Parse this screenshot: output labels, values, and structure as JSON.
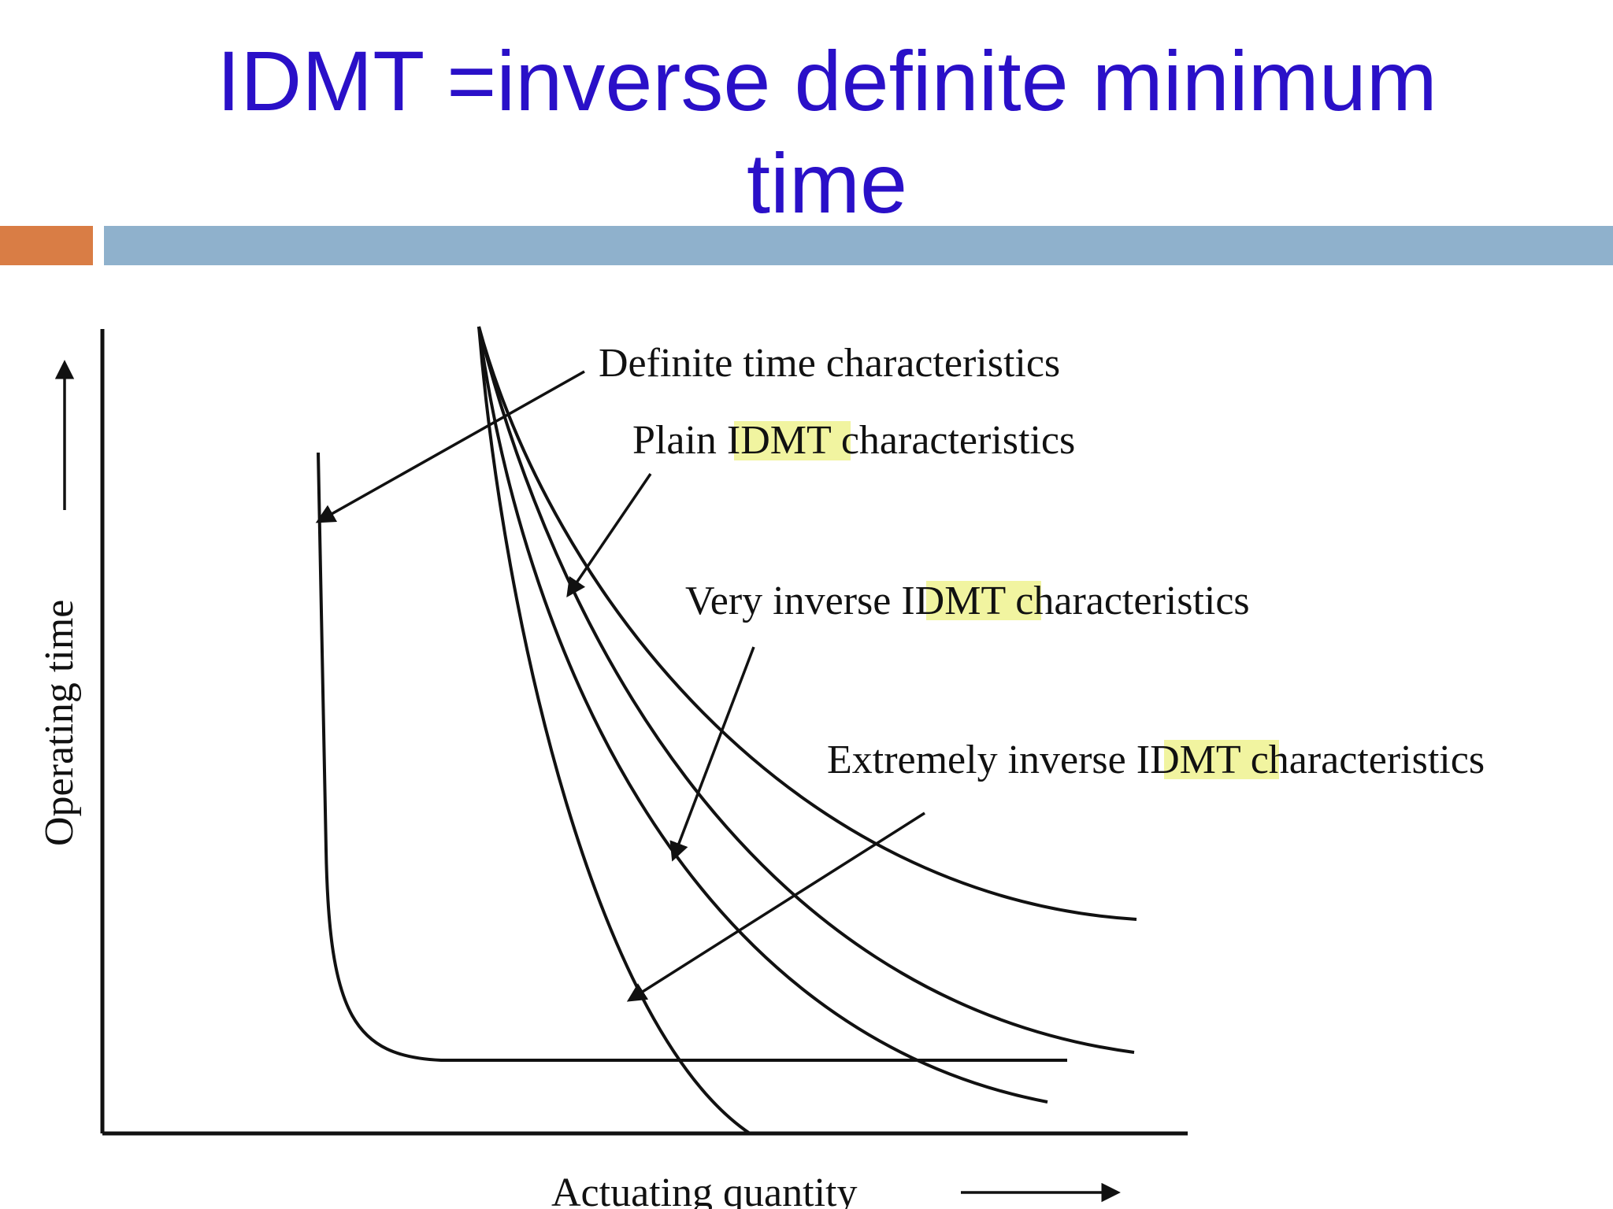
{
  "slide": {
    "title_line1": "IDMT =inverse definite minimum",
    "title_line2": "time",
    "title_color": "#2a10c8",
    "accent_orange": "#d97d45",
    "accent_blue": "#8fb1cc"
  },
  "diagram": {
    "y_axis_label": "Operating time",
    "x_axis_label": "Actuating quantity",
    "highlight_color": "#f1f4a0",
    "labels": {
      "definite_time": "Definite time characteristics",
      "plain_idmt": {
        "pre": "Plain ",
        "hl": "IDMT",
        "post": " characteristics"
      },
      "very_inverse": {
        "pre": "Very inverse ",
        "hl": "IDMT",
        "post": " characteristics"
      },
      "extremely_inverse": {
        "pre": "Extremely inverse ",
        "hl": "IDMT",
        "post": " characteristics"
      }
    },
    "curves": [
      "definite-time-curve",
      "plain-idmt-curve",
      "very-inverse-curve",
      "extremely-inverse-curve",
      "steepest-curve"
    ]
  }
}
